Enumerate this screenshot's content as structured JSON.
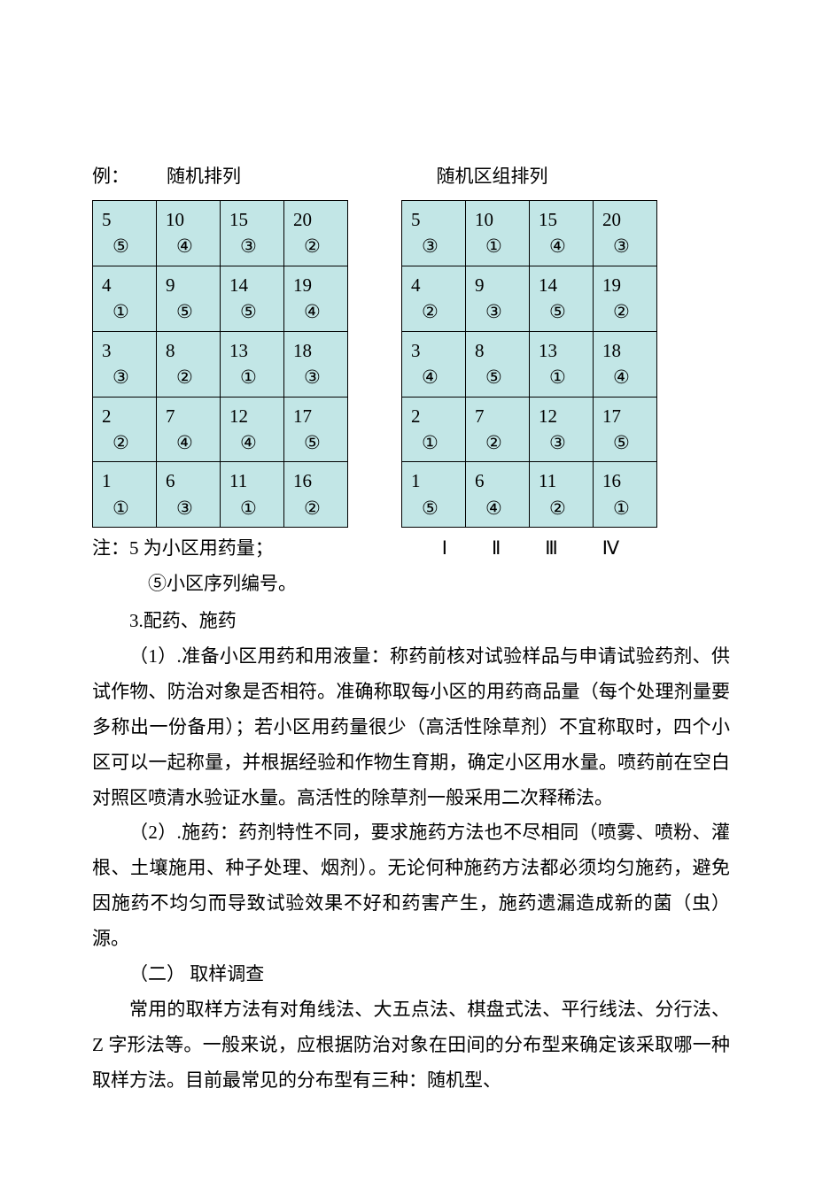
{
  "header": {
    "example_label": "例：",
    "left_title": "随机排列",
    "right_title": "随机区组排列"
  },
  "circled": [
    "①",
    "②",
    "③",
    "④",
    "⑤"
  ],
  "roman": [
    "Ⅰ",
    "Ⅱ",
    "Ⅲ",
    "Ⅳ"
  ],
  "tables": {
    "left": {
      "cell_bg": "#c2e6e6",
      "border_color": "#000000",
      "rows": [
        [
          {
            "n": "5",
            "c": 5
          },
          {
            "n": "10",
            "c": 4
          },
          {
            "n": "15",
            "c": 3
          },
          {
            "n": "20",
            "c": 2
          }
        ],
        [
          {
            "n": "4",
            "c": 1
          },
          {
            "n": "9",
            "c": 5
          },
          {
            "n": "14",
            "c": 5
          },
          {
            "n": "19",
            "c": 4
          }
        ],
        [
          {
            "n": "3",
            "c": 3
          },
          {
            "n": "8",
            "c": 2
          },
          {
            "n": "13",
            "c": 1
          },
          {
            "n": "18",
            "c": 3
          }
        ],
        [
          {
            "n": "2",
            "c": 2
          },
          {
            "n": "7",
            "c": 4
          },
          {
            "n": "12",
            "c": 4
          },
          {
            "n": "17",
            "c": 5
          }
        ],
        [
          {
            "n": "1",
            "c": 1
          },
          {
            "n": "6",
            "c": 3
          },
          {
            "n": "11",
            "c": 1
          },
          {
            "n": "16",
            "c": 2
          }
        ]
      ]
    },
    "right": {
      "cell_bg": "#c2e6e6",
      "border_color": "#000000",
      "rows": [
        [
          {
            "n": "5",
            "c": 3
          },
          {
            "n": "10",
            "c": 1
          },
          {
            "n": "15",
            "c": 4
          },
          {
            "n": "20",
            "c": 3
          }
        ],
        [
          {
            "n": "4",
            "c": 2
          },
          {
            "n": "9",
            "c": 3
          },
          {
            "n": "14",
            "c": 5
          },
          {
            "n": "19",
            "c": 2
          }
        ],
        [
          {
            "n": "3",
            "c": 4
          },
          {
            "n": "8",
            "c": 5
          },
          {
            "n": "13",
            "c": 1
          },
          {
            "n": "18",
            "c": 4
          }
        ],
        [
          {
            "n": "2",
            "c": 1
          },
          {
            "n": "7",
            "c": 2
          },
          {
            "n": "12",
            "c": 3
          },
          {
            "n": "17",
            "c": 5
          }
        ],
        [
          {
            "n": "1",
            "c": 5
          },
          {
            "n": "6",
            "c": 4
          },
          {
            "n": "11",
            "c": 2
          },
          {
            "n": "16",
            "c": 1
          }
        ]
      ]
    }
  },
  "notes": {
    "line1": "注：5 为小区用药量；",
    "line2": "⑤小区序列编号。"
  },
  "body": {
    "h3": "3.配药、施药",
    "p1": "（1）.准备小区用药和用液量：称药前核对试验样品与申请试验药剂、供试作物、防治对象是否相符。准确称取每小区的用药商品量（每个处理剂量要多称出一份备用）；若小区用药量很少（高活性除草剂）不宜称取时，四个小区可以一起称量，并根据经验和作物生育期，确定小区用水量。喷药前在空白对照区喷清水验证水量。高活性的除草剂一般采用二次释稀法。",
    "p2": "（2）.施药：药剂特性不同，要求施药方法也不尽相同（喷雾、喷粉、灌根、土壤施用、种子处理、烟剂）。无论何种施药方法都必须均匀施药，避免因施药不均匀而导致试验效果不好和药害产生，施药遗漏造成新的菌（虫）源。",
    "h2": "（二） 取样调查",
    "p3": "常用的取样方法有对角线法、大五点法、棋盘式法、平行线法、分行法、Z 字形法等。一般来说，应根据防治对象在田间的分布型来确定该采取哪一种取样方法。目前最常见的分布型有三种：随机型、"
  }
}
